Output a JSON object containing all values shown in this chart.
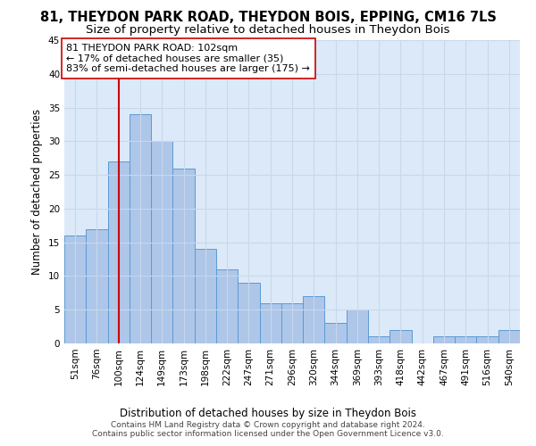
{
  "title_line1": "81, THEYDON PARK ROAD, THEYDON BOIS, EPPING, CM16 7LS",
  "title_line2": "Size of property relative to detached houses in Theydon Bois",
  "xlabel": "Distribution of detached houses by size in Theydon Bois",
  "ylabel": "Number of detached properties",
  "bar_labels": [
    "51sqm",
    "76sqm",
    "100sqm",
    "124sqm",
    "149sqm",
    "173sqm",
    "198sqm",
    "222sqm",
    "247sqm",
    "271sqm",
    "296sqm",
    "320sqm",
    "344sqm",
    "369sqm",
    "393sqm",
    "418sqm",
    "442sqm",
    "467sqm",
    "491sqm",
    "516sqm",
    "540sqm"
  ],
  "bar_values": [
    16,
    17,
    27,
    34,
    30,
    26,
    14,
    11,
    9,
    6,
    6,
    7,
    3,
    5,
    1,
    2,
    0,
    1,
    1,
    1,
    2
  ],
  "bar_color": "#aec6e8",
  "bar_edge_color": "#5b9bd5",
  "ref_line_index": 2,
  "ref_line_color": "#cc0000",
  "annotation_text": "81 THEYDON PARK ROAD: 102sqm\n← 17% of detached houses are smaller (35)\n83% of semi-detached houses are larger (175) →",
  "annotation_box_color": "#ffffff",
  "annotation_box_edge": "#cc0000",
  "ylim": [
    0,
    45
  ],
  "yticks": [
    0,
    5,
    10,
    15,
    20,
    25,
    30,
    35,
    40,
    45
  ],
  "grid_color": "#c8d8ec",
  "background_color": "#dce9f8",
  "footer_text": "Contains HM Land Registry data © Crown copyright and database right 2024.\nContains public sector information licensed under the Open Government Licence v3.0.",
  "title_fontsize": 10.5,
  "subtitle_fontsize": 9.5,
  "axis_label_fontsize": 8.5,
  "tick_fontsize": 7.5,
  "annotation_fontsize": 8,
  "footer_fontsize": 6.5
}
